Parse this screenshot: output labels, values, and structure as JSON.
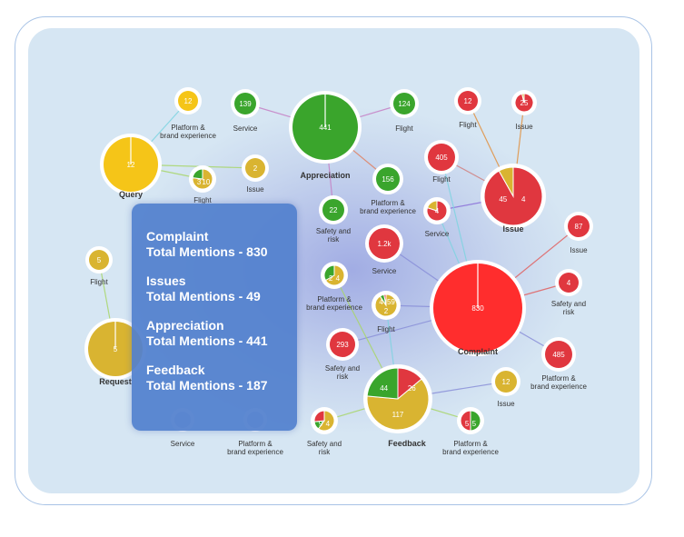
{
  "colors": {
    "green": "#3aa52c",
    "yellow": "#f5c518",
    "gold": "#d9b431",
    "red": "#e0373f",
    "bright_red": "#ff2d2d",
    "edge": "#9aa7d6"
  },
  "nodes": [
    {
      "id": "appreciation",
      "label": "Appreciation",
      "hub": true,
      "slices": [
        {
          "color": "green",
          "value": 441
        }
      ],
      "values": [
        "441"
      ]
    },
    {
      "id": "query",
      "label": "Query",
      "hub": true,
      "slices": [
        {
          "color": "yellow",
          "value": 12
        }
      ],
      "values": [
        "12"
      ]
    },
    {
      "id": "issue",
      "label": "Issue",
      "hub": true,
      "slices": [
        {
          "color": "red",
          "value": 45
        },
        {
          "color": "gold",
          "value": 4
        }
      ],
      "values": [
        "45",
        "4"
      ]
    },
    {
      "id": "complaint",
      "label": "Complaint",
      "hub": true,
      "slices": [
        {
          "color": "bright_red",
          "value": 830
        }
      ],
      "values": [
        "830"
      ]
    },
    {
      "id": "feedback",
      "label": "Feedback",
      "hub": true,
      "slices": [
        {
          "color": "red",
          "value": 26
        },
        {
          "color": "gold",
          "value": 117
        },
        {
          "color": "green",
          "value": 44
        }
      ],
      "values": [
        "26",
        "117",
        "44"
      ]
    },
    {
      "id": "request",
      "label": "Request",
      "hub": true,
      "slices": [
        {
          "color": "gold",
          "value": 5
        }
      ],
      "values": [
        "5"
      ]
    },
    {
      "id": "q-platform",
      "label": "Platform & brand experience",
      "slices": [
        {
          "color": "yellow",
          "value": 12
        }
      ],
      "values": [
        "12"
      ]
    },
    {
      "id": "a-service",
      "label": "Service",
      "slices": [
        {
          "color": "green",
          "value": 139
        }
      ],
      "values": [
        "139"
      ]
    },
    {
      "id": "a-flight",
      "label": "Flight",
      "slices": [
        {
          "color": "green",
          "value": 124
        }
      ],
      "values": [
        "124"
      ]
    },
    {
      "id": "i-flight",
      "label": "Flight",
      "slices": [
        {
          "color": "red",
          "value": 12
        }
      ],
      "values": [
        "12"
      ]
    },
    {
      "id": "i-issue",
      "label": "Issue",
      "slices": [
        {
          "color": "red",
          "value": 25
        },
        {
          "color": "gold",
          "value": 1
        }
      ],
      "values": [
        "25"
      ]
    },
    {
      "id": "q-flight",
      "label": "Flight",
      "slices": [
        {
          "color": "gold",
          "value": 10
        },
        {
          "color": "green",
          "value": 3
        }
      ],
      "values": [
        "3",
        "10"
      ]
    },
    {
      "id": "q-issue",
      "label": "Issue",
      "slices": [
        {
          "color": "gold",
          "value": 2
        }
      ],
      "values": [
        "2"
      ]
    },
    {
      "id": "a-platform",
      "label": "Platform & brand experience",
      "slices": [
        {
          "color": "green",
          "value": 156
        }
      ],
      "values": [
        "156"
      ]
    },
    {
      "id": "c-flight",
      "label": "Flight",
      "slices": [
        {
          "color": "red",
          "value": 405
        }
      ],
      "values": [
        "405"
      ]
    },
    {
      "id": "i-service",
      "label": "Service",
      "slices": [
        {
          "color": "red",
          "value": 4
        },
        {
          "color": "gold",
          "value": 1
        }
      ],
      "values": [
        "4"
      ]
    },
    {
      "id": "a-safety",
      "label": "Safety and risk",
      "slices": [
        {
          "color": "green",
          "value": 22
        }
      ],
      "values": [
        "22"
      ]
    },
    {
      "id": "c-service",
      "label": "Service",
      "slices": [
        {
          "color": "red",
          "value": 1200
        }
      ],
      "values": [
        "1.2k"
      ]
    },
    {
      "id": "c-issue",
      "label": "Issue",
      "slices": [
        {
          "color": "red",
          "value": 87
        }
      ],
      "values": [
        "87"
      ]
    },
    {
      "id": "r-flight",
      "label": "Flight",
      "slices": [
        {
          "color": "gold",
          "value": 5
        }
      ],
      "values": [
        "5"
      ]
    },
    {
      "id": "f-platform",
      "label": "Platform & brand experience",
      "slices": [
        {
          "color": "gold",
          "value": 4
        },
        {
          "color": "green",
          "value": 2
        }
      ],
      "values": [
        "2",
        "4"
      ]
    },
    {
      "id": "f-flight",
      "label": "Flight",
      "slices": [
        {
          "color": "gold",
          "value": 59
        },
        {
          "color": "green",
          "value": 4
        },
        {
          "color": "red",
          "value": 2
        }
      ],
      "values": [
        "59",
        "2",
        "4"
      ]
    },
    {
      "id": "c-safety",
      "label": "Safety and risk",
      "slices": [
        {
          "color": "red",
          "value": 4
        }
      ],
      "values": [
        "4"
      ]
    },
    {
      "id": "c-safety2",
      "label": "Safety and risk",
      "slices": [
        {
          "color": "red",
          "value": 293
        }
      ],
      "values": [
        "293"
      ]
    },
    {
      "id": "c-platform",
      "label": "Platform & brand experience",
      "slices": [
        {
          "color": "red",
          "value": 485
        }
      ],
      "values": [
        "485"
      ]
    },
    {
      "id": "f-issue",
      "label": "Issue",
      "slices": [
        {
          "color": "gold",
          "value": 12
        }
      ],
      "values": [
        "12"
      ]
    },
    {
      "id": "f-service",
      "label": "Service",
      "slices": [],
      "values": []
    },
    {
      "id": "f-platform2",
      "label": "Platform & brand experience",
      "slices": [],
      "values": []
    },
    {
      "id": "f-safety",
      "label": "Safety and risk",
      "slices": [
        {
          "color": "gold",
          "value": 9
        },
        {
          "color": "green",
          "value": 2
        },
        {
          "color": "red",
          "value": 4
        }
      ],
      "values": [
        "9",
        "4"
      ]
    },
    {
      "id": "f-platform3",
      "label": "Platform & brand experience",
      "slices": [
        {
          "color": "green",
          "value": 5
        },
        {
          "color": "red",
          "value": 5
        }
      ],
      "values": [
        "5",
        "5"
      ]
    }
  ],
  "tooltip": [
    {
      "name": "Complaint",
      "mentions": "Total Mentions - 830"
    },
    {
      "name": "Issues",
      "mentions": "Total Mentions - 49"
    },
    {
      "name": "Appreciation",
      "mentions": "Total Mentions - 441"
    },
    {
      "name": "Feedback",
      "mentions": "Total Mentions - 187"
    }
  ]
}
